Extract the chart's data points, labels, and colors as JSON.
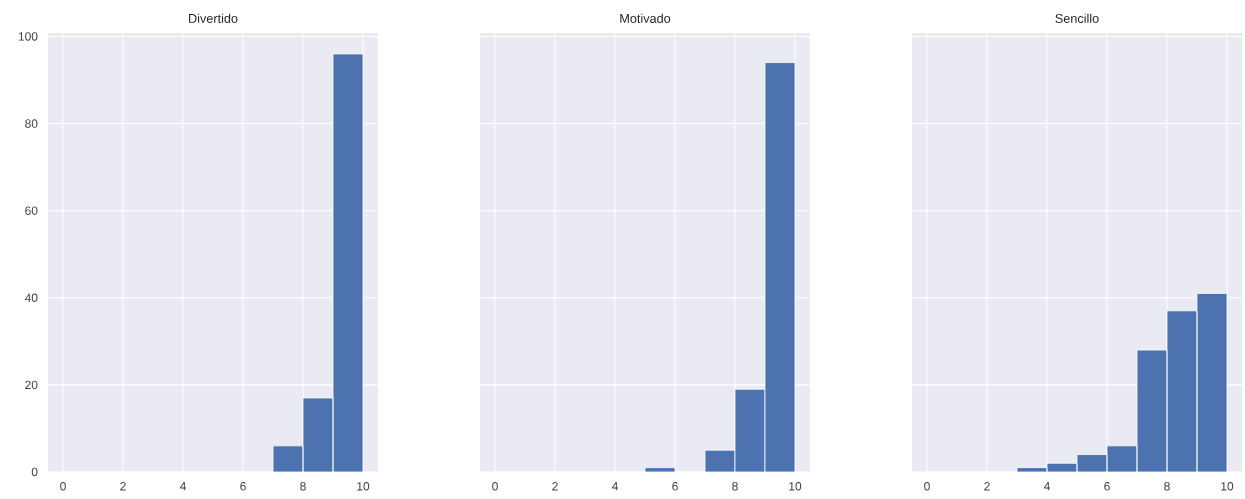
{
  "chart_data": [
    {
      "type": "histogram",
      "title": "Divertido",
      "bins": [
        0,
        1,
        2,
        3,
        4,
        5,
        6,
        7,
        8,
        9,
        10
      ],
      "values": [
        0,
        0,
        0,
        0,
        0,
        0,
        0,
        6,
        17,
        96
      ],
      "color": "#4c72b0",
      "xlim": [
        -0.5,
        10.5
      ],
      "ylim": [
        0,
        100.8
      ],
      "xticks": [
        0,
        2,
        4,
        6,
        8,
        10
      ],
      "yticks": [
        0,
        20,
        40,
        60,
        80,
        100
      ],
      "grid": true
    },
    {
      "type": "histogram",
      "title": "Motivado",
      "bins": [
        0,
        1,
        2,
        3,
        4,
        5,
        6,
        7,
        8,
        9,
        10
      ],
      "values": [
        0,
        0,
        0,
        0,
        0,
        1,
        0,
        5,
        19,
        94
      ],
      "color": "#4c72b0",
      "xlim": [
        -0.5,
        10.5
      ],
      "ylim": [
        0,
        100.8
      ],
      "xticks": [
        0,
        2,
        4,
        6,
        8,
        10
      ],
      "yticks": [
        0,
        20,
        40,
        60,
        80,
        100
      ],
      "grid": true,
      "tick_labels": "x"
    },
    {
      "type": "histogram",
      "title": "Sencillo",
      "bins": [
        0,
        1,
        2,
        3,
        4,
        5,
        6,
        7,
        8,
        9,
        10
      ],
      "values": [
        0,
        0,
        0,
        1,
        2,
        4,
        6,
        28,
        37,
        41
      ],
      "color": "#4c72b0",
      "xlim": [
        -0.5,
        10.5
      ],
      "ylim": [
        0,
        100.8
      ],
      "xticks": [
        0,
        2,
        4,
        6,
        8,
        10
      ],
      "yticks": [
        0,
        20,
        40,
        60,
        80,
        100
      ],
      "grid": true,
      "tick_labels": "x"
    }
  ]
}
